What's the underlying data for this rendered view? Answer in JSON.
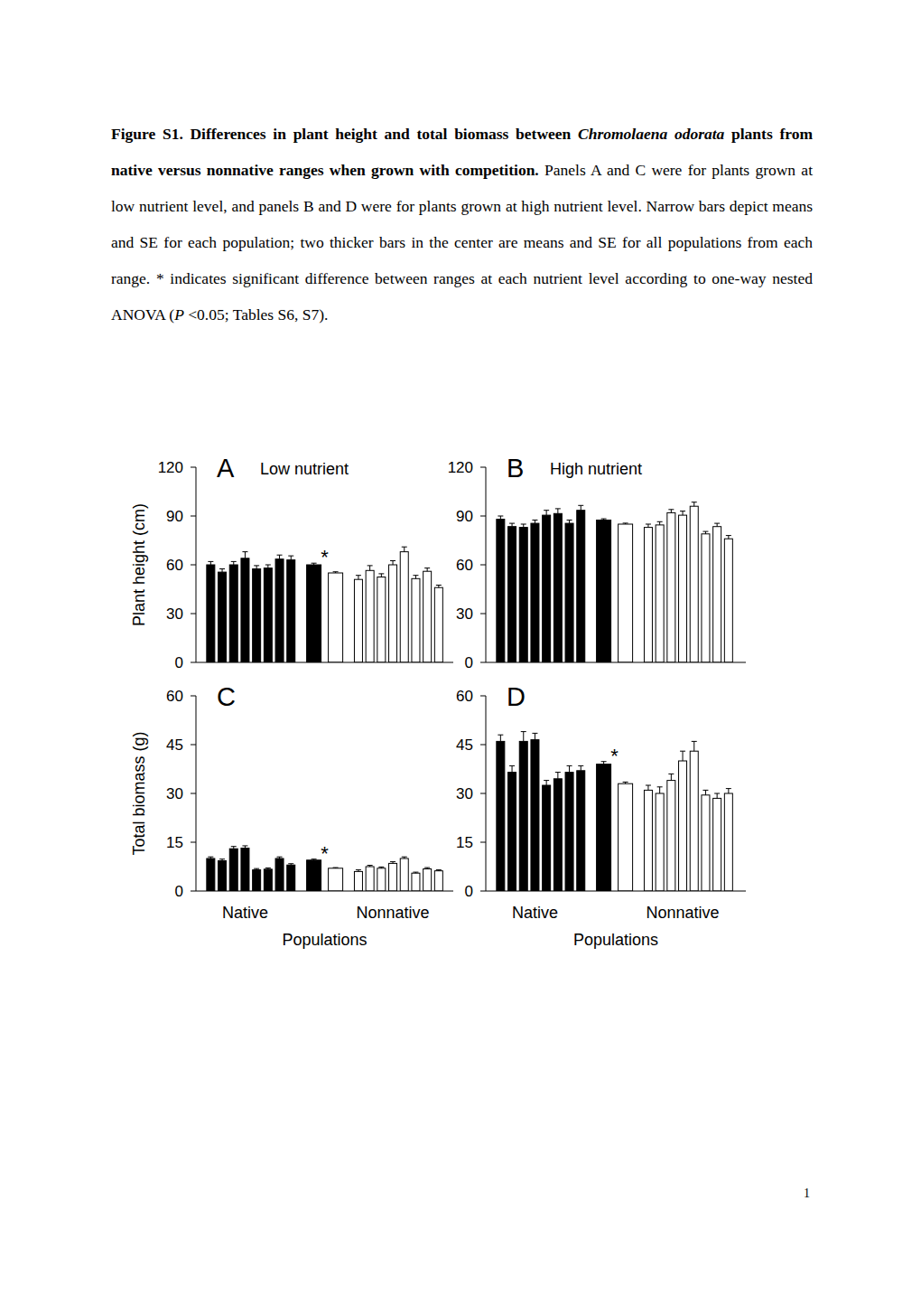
{
  "caption": [
    {
      "text": "Figure S1. Differences in plant height and total biomass between ",
      "style": "bold"
    },
    {
      "text": "Chromolaena odorata",
      "style": "bold-italic"
    },
    {
      "text": " plants from native versus nonnative ranges when grown with competition.",
      "style": "bold"
    },
    {
      "text": "  Panels A and C were for plants grown at low nutrient level, and panels B and D were for plants grown at high nutrient level.  Narrow bars depict means and SE for each population; two thicker bars in the center are means and SE for all populations from each range.  * indicates significant difference between ranges at each nutrient level according to one-way nested ANOVA (",
      "style": "normal"
    },
    {
      "text": "P",
      "style": "italic"
    },
    {
      "text": " <0.05; Tables S6, S7).",
      "style": "normal"
    }
  ],
  "chart_data": [
    {
      "type": "bar",
      "panel": "A",
      "title": "Low nutrient",
      "y_label": "Plant height (cm)",
      "categories": [
        null,
        null,
        null,
        null,
        null,
        null,
        null,
        null,
        null,
        null,
        null,
        null,
        null,
        null,
        null,
        null,
        null,
        null
      ],
      "series": [
        {
          "values": [
            60,
            55.5,
            60,
            64,
            57.5,
            58,
            63.5,
            63,
            null,
            null,
            51,
            56.5,
            52.5,
            60,
            68,
            51.5,
            56,
            46
          ],
          "errors": [
            2,
            2,
            2,
            4,
            2,
            2,
            2.5,
            2.5,
            null,
            null,
            2.5,
            3,
            2,
            2.5,
            3,
            2,
            2,
            1.5
          ],
          "colors": [
            "#000000",
            "#000000",
            "#000000",
            "#000000",
            "#000000",
            "#000000",
            "#000000",
            "#000000",
            null,
            null,
            "#ffffff",
            "#ffffff",
            "#ffffff",
            "#ffffff",
            "#ffffff",
            "#ffffff",
            "#ffffff",
            "#ffffff"
          ]
        },
        {
          "values": [
            null,
            null,
            null,
            null,
            null,
            null,
            null,
            null,
            60,
            55,
            null,
            null,
            null,
            null,
            null,
            null,
            null,
            null
          ],
          "errors": [
            null,
            null,
            null,
            null,
            null,
            null,
            null,
            null,
            1,
            0.7,
            null,
            null,
            null,
            null,
            null,
            null,
            null,
            null
          ],
          "colors": [
            null,
            null,
            null,
            null,
            null,
            null,
            null,
            null,
            "#000000",
            "#ffffff",
            null,
            null,
            null,
            null,
            null,
            null,
            null,
            null
          ]
        }
      ],
      "ylim": [
        0,
        120
      ],
      "yticks": [
        0,
        30,
        60,
        90,
        120
      ],
      "annotations": [
        "*"
      ]
    },
    {
      "type": "bar",
      "panel": "B",
      "title": "High nutrient",
      "categories": [
        null,
        null,
        null,
        null,
        null,
        null,
        null,
        null,
        null,
        null,
        null,
        null,
        null,
        null,
        null,
        null,
        null,
        null
      ],
      "series": [
        {
          "values": [
            88,
            83.5,
            83,
            85.5,
            90.5,
            91.5,
            85.5,
            93.5,
            null,
            null,
            83,
            84.5,
            92,
            90.5,
            96,
            79,
            83.5,
            76
          ],
          "errors": [
            2,
            2,
            2,
            2,
            3,
            3,
            2,
            3,
            null,
            null,
            2,
            2,
            2,
            2.5,
            2.5,
            1.5,
            2,
            2
          ],
          "colors": [
            "#000000",
            "#000000",
            "#000000",
            "#000000",
            "#000000",
            "#000000",
            "#000000",
            "#000000",
            null,
            null,
            "#ffffff",
            "#ffffff",
            "#ffffff",
            "#ffffff",
            "#ffffff",
            "#ffffff",
            "#ffffff",
            "#ffffff"
          ]
        },
        {
          "values": [
            null,
            null,
            null,
            null,
            null,
            null,
            null,
            null,
            87.5,
            85,
            null,
            null,
            null,
            null,
            null,
            null,
            null,
            null
          ],
          "errors": [
            null,
            null,
            null,
            null,
            null,
            null,
            null,
            null,
            0.8,
            0.6,
            null,
            null,
            null,
            null,
            null,
            null,
            null,
            null
          ],
          "colors": [
            null,
            null,
            null,
            null,
            null,
            null,
            null,
            null,
            "#000000",
            "#ffffff",
            null,
            null,
            null,
            null,
            null,
            null,
            null,
            null
          ]
        }
      ],
      "ylim": [
        0,
        120
      ],
      "yticks": [
        0,
        30,
        60,
        90,
        120
      ]
    },
    {
      "type": "bar",
      "panel": "C",
      "y_label": "Total biomass (g)",
      "x_label": "Populations",
      "categories": [
        null,
        null,
        null,
        "Native",
        null,
        null,
        null,
        null,
        null,
        null,
        null,
        null,
        null,
        "Nonnative",
        null,
        null,
        null,
        null
      ],
      "series": [
        {
          "values": [
            10,
            9.3,
            13,
            13.2,
            6.5,
            6.7,
            10,
            8,
            null,
            null,
            6,
            7.5,
            7,
            8.5,
            10,
            5.5,
            6.8,
            6.2
          ],
          "errors": [
            0.5,
            0.5,
            0.7,
            0.7,
            0.4,
            0.4,
            0.5,
            0.4,
            null,
            null,
            0.5,
            0.4,
            0.4,
            0.5,
            0.5,
            0.3,
            0.4,
            0.3
          ],
          "colors": [
            "#000000",
            "#000000",
            "#000000",
            "#000000",
            "#000000",
            "#000000",
            "#000000",
            "#000000",
            null,
            null,
            "#ffffff",
            "#ffffff",
            "#ffffff",
            "#ffffff",
            "#ffffff",
            "#ffffff",
            "#ffffff",
            "#ffffff"
          ]
        },
        {
          "values": [
            null,
            null,
            null,
            null,
            null,
            null,
            null,
            null,
            9.5,
            7,
            null,
            null,
            null,
            null,
            null,
            null,
            null,
            null
          ],
          "errors": [
            null,
            null,
            null,
            null,
            null,
            null,
            null,
            null,
            0.3,
            0.2,
            null,
            null,
            null,
            null,
            null,
            null,
            null,
            null
          ],
          "colors": [
            null,
            null,
            null,
            null,
            null,
            null,
            null,
            null,
            "#000000",
            "#ffffff",
            null,
            null,
            null,
            null,
            null,
            null,
            null,
            null
          ]
        }
      ],
      "ylim": [
        0,
        60
      ],
      "yticks": [
        0,
        15,
        30,
        45,
        60
      ],
      "annotations": [
        "*"
      ]
    },
    {
      "type": "bar",
      "panel": "D",
      "x_label": "Populations",
      "categories": [
        null,
        null,
        null,
        "Native",
        null,
        null,
        null,
        null,
        null,
        null,
        null,
        null,
        null,
        "Nonnative",
        null,
        null,
        null,
        null
      ],
      "series": [
        {
          "values": [
            46,
            36.5,
            46,
            46.5,
            32.5,
            34.5,
            36.5,
            37,
            null,
            null,
            31,
            30,
            34,
            40,
            43,
            29.5,
            28.5,
            30
          ],
          "errors": [
            2,
            2,
            3,
            2,
            1.5,
            2,
            2,
            1.5,
            null,
            null,
            1.5,
            2,
            2,
            3,
            3,
            1.5,
            1.5,
            1.5
          ],
          "colors": [
            "#000000",
            "#000000",
            "#000000",
            "#000000",
            "#000000",
            "#000000",
            "#000000",
            "#000000",
            null,
            null,
            "#ffffff",
            "#ffffff",
            "#ffffff",
            "#ffffff",
            "#ffffff",
            "#ffffff",
            "#ffffff",
            "#ffffff"
          ]
        },
        {
          "values": [
            null,
            null,
            null,
            null,
            null,
            null,
            null,
            null,
            39,
            33,
            null,
            null,
            null,
            null,
            null,
            null,
            null,
            null
          ],
          "errors": [
            null,
            null,
            null,
            null,
            null,
            null,
            null,
            null,
            0.8,
            0.5,
            null,
            null,
            null,
            null,
            null,
            null,
            null,
            null
          ],
          "colors": [
            null,
            null,
            null,
            null,
            null,
            null,
            null,
            null,
            "#000000",
            "#ffffff",
            null,
            null,
            null,
            null,
            null,
            null,
            null,
            null
          ]
        }
      ],
      "ylim": [
        0,
        60
      ],
      "yticks": [
        0,
        15,
        30,
        45,
        60
      ],
      "annotations": [
        "*"
      ]
    }
  ],
  "page_number": "1"
}
